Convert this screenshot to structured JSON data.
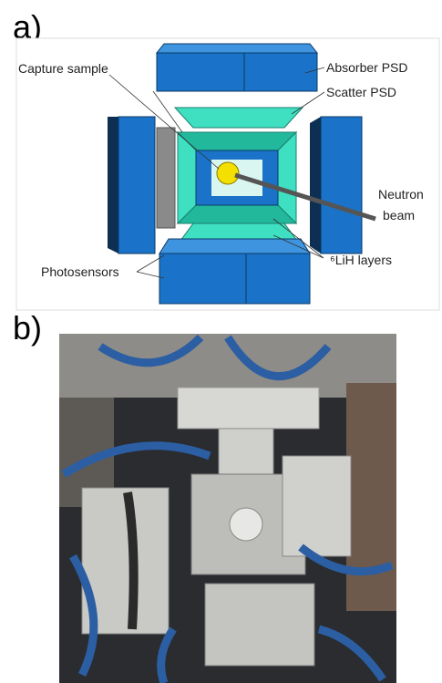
{
  "panels": [
    {
      "label": "a)",
      "annotations": {
        "capture_sample": "Capture sample",
        "absorber": "Absorber PSD",
        "scatter": "Scatter PSD",
        "beam_line1": "Neutron",
        "beam_line2": "beam",
        "layers": "⁶LiH layers",
        "photosensors": "Photosensors"
      }
    },
    {
      "label": "b)"
    }
  ]
}
